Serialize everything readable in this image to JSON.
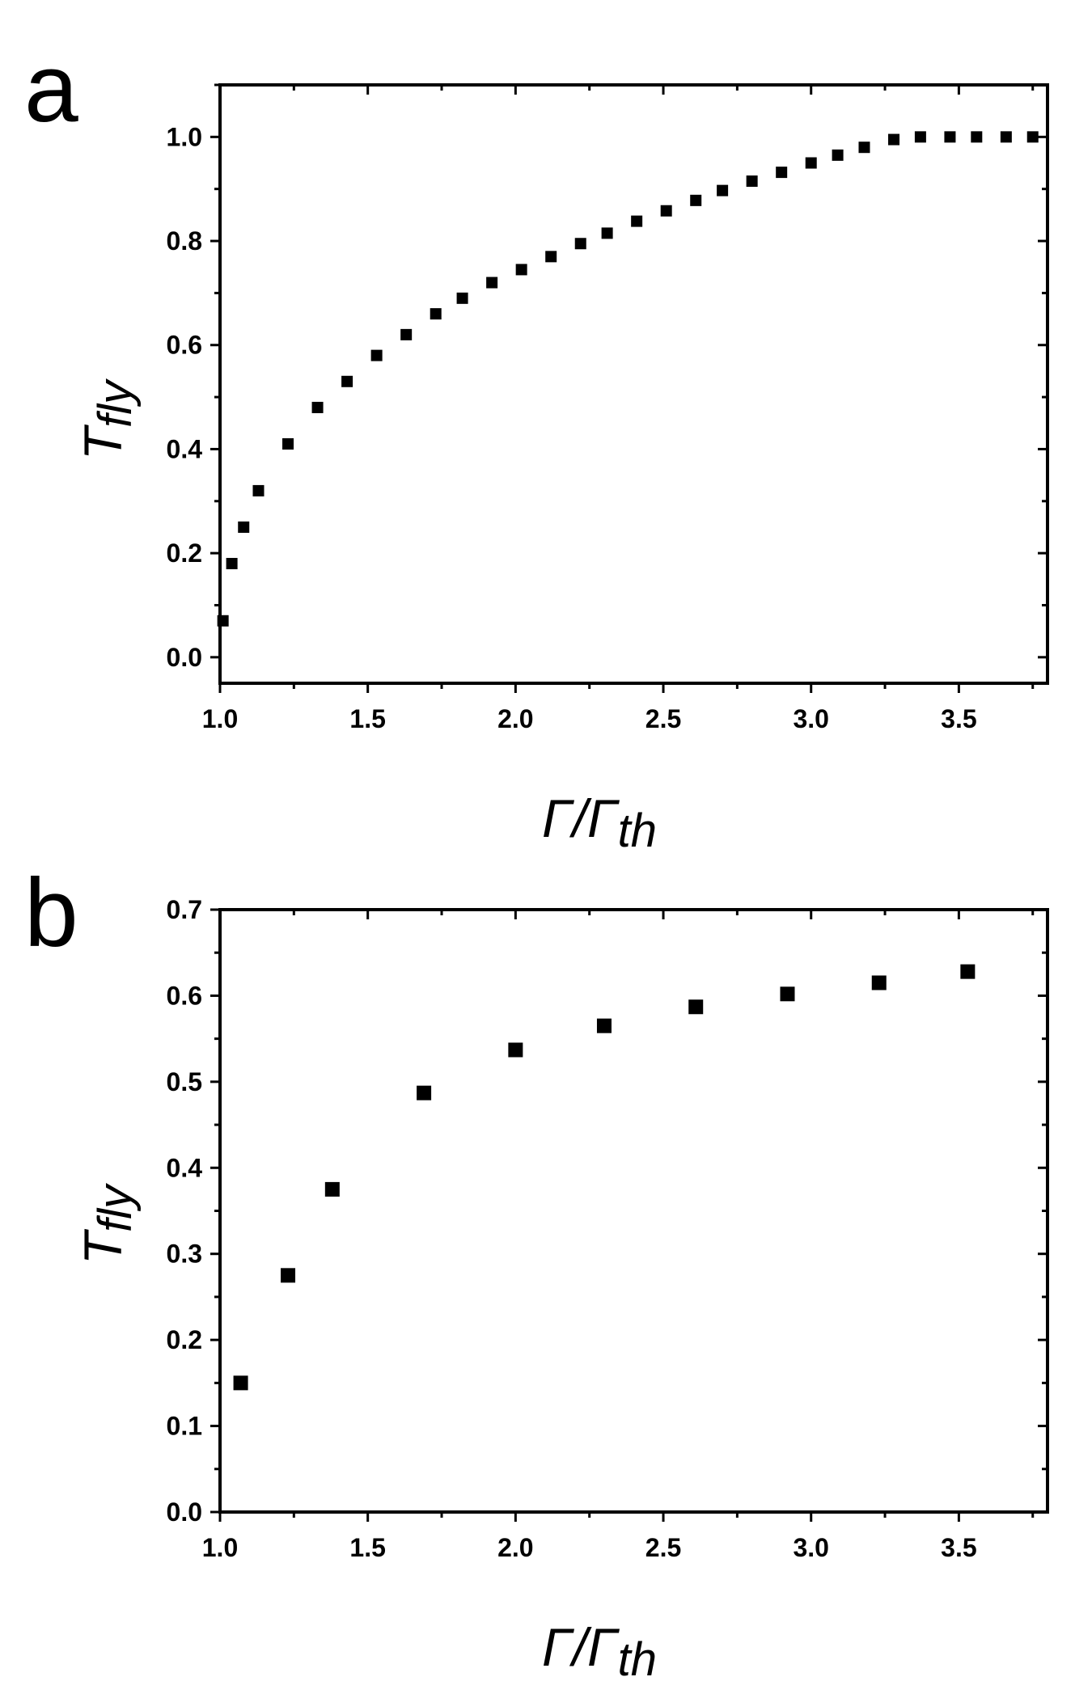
{
  "chart_data": [
    {
      "panel_label": "a",
      "type": "scatter",
      "marker": "square",
      "marker_color": "#000000",
      "xlim": [
        1.0,
        3.8
      ],
      "ylim": [
        -0.05,
        1.1
      ],
      "xticks": [
        1.0,
        1.5,
        2.0,
        2.5,
        3.0,
        3.5
      ],
      "xtick_labels": [
        "1.0",
        "1.5",
        "2.0",
        "2.5",
        "3.0",
        "3.5"
      ],
      "yticks": [
        0.0,
        0.2,
        0.4,
        0.6,
        0.8,
        1.0
      ],
      "ytick_labels": [
        "0.0",
        "0.2",
        "0.4",
        "0.6",
        "0.8",
        "1.0"
      ],
      "xlabel": {
        "main": "Γ/Γ",
        "sub": "th"
      },
      "ylabel": {
        "main": "T",
        "sub": "fly"
      },
      "grid": false,
      "series": [
        {
          "name": "T_fly",
          "x": [
            1.01,
            1.04,
            1.08,
            1.13,
            1.23,
            1.33,
            1.43,
            1.53,
            1.63,
            1.73,
            1.82,
            1.92,
            2.02,
            2.12,
            2.22,
            2.31,
            2.41,
            2.51,
            2.61,
            2.7,
            2.8,
            2.9,
            3.0,
            3.09,
            3.18,
            3.28,
            3.37,
            3.47,
            3.56,
            3.66,
            3.75
          ],
          "y": [
            0.07,
            0.18,
            0.25,
            0.32,
            0.41,
            0.48,
            0.53,
            0.58,
            0.62,
            0.66,
            0.69,
            0.72,
            0.745,
            0.77,
            0.795,
            0.815,
            0.838,
            0.858,
            0.878,
            0.897,
            0.915,
            0.932,
            0.95,
            0.965,
            0.98,
            0.995,
            1.0,
            1.0,
            1.0,
            1.0,
            1.0
          ]
        }
      ]
    },
    {
      "panel_label": "b",
      "type": "scatter",
      "marker": "square",
      "marker_color": "#000000",
      "xlim": [
        1.0,
        3.8
      ],
      "ylim": [
        0.0,
        0.7
      ],
      "xticks": [
        1.0,
        1.5,
        2.0,
        2.5,
        3.0,
        3.5
      ],
      "xtick_labels": [
        "1.0",
        "1.5",
        "2.0",
        "2.5",
        "3.0",
        "3.5"
      ],
      "yticks": [
        0.0,
        0.1,
        0.2,
        0.3,
        0.4,
        0.5,
        0.6,
        0.7
      ],
      "ytick_labels": [
        "0.0",
        "0.1",
        "0.2",
        "0.3",
        "0.4",
        "0.5",
        "0.6",
        "0.7"
      ],
      "xlabel": {
        "main": "Γ/Γ",
        "sub": "th"
      },
      "ylabel": {
        "main": "T",
        "sub": "fly"
      },
      "grid": false,
      "series": [
        {
          "name": "T_fly",
          "x": [
            1.07,
            1.23,
            1.38,
            1.69,
            2.0,
            2.3,
            2.61,
            2.92,
            3.23,
            3.53
          ],
          "y": [
            0.15,
            0.275,
            0.375,
            0.487,
            0.537,
            0.565,
            0.587,
            0.602,
            0.615,
            0.628
          ]
        }
      ]
    }
  ]
}
